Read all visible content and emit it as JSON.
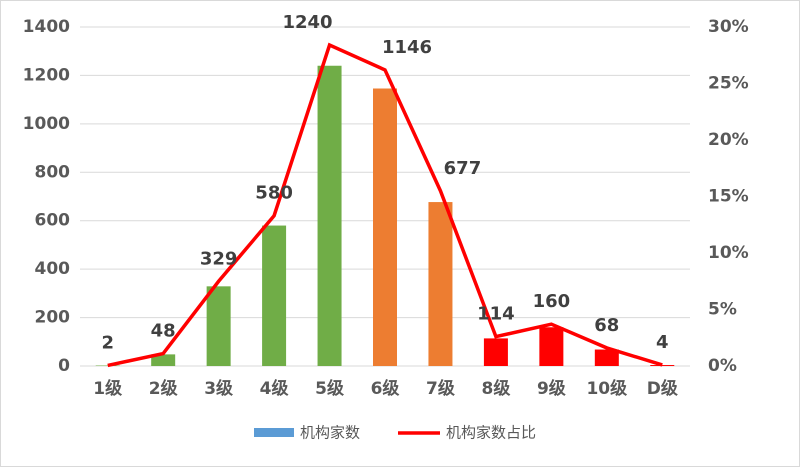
{
  "chart_data": {
    "type": "bar_line",
    "categories": [
      "1级",
      "2级",
      "3级",
      "4级",
      "5级",
      "6级",
      "7级",
      "8级",
      "9级",
      "10级",
      "D级"
    ],
    "series": [
      {
        "name": "机构家数",
        "type": "bar",
        "color": "#5b9bd5",
        "colors": [
          "#70ad47",
          "#70ad47",
          "#70ad47",
          "#70ad47",
          "#70ad47",
          "#ed7d31",
          "#ed7d31",
          "#ff0000",
          "#ff0000",
          "#ff0000",
          "#ff0000"
        ],
        "values": [
          2,
          48,
          329,
          580,
          1240,
          1146,
          677,
          114,
          160,
          68,
          4
        ]
      },
      {
        "name": "机构家数占比",
        "type": "line",
        "axis": "y2",
        "color": "#ff0000",
        "values": [
          0.05,
          1.1,
          7.5,
          13.3,
          28.4,
          26.2,
          15.5,
          2.6,
          3.7,
          1.6,
          0.09
        ]
      }
    ],
    "ylim": [
      0,
      1400
    ],
    "yticks": [
      0,
      200,
      400,
      600,
      800,
      1000,
      1200,
      1400
    ],
    "y2lim": [
      0,
      30
    ],
    "y2ticks": [
      {
        "value": 0,
        "label": "0%"
      },
      {
        "value": 5,
        "label": "5%"
      },
      {
        "value": 10,
        "label": "10%"
      },
      {
        "value": 15,
        "label": "15%"
      },
      {
        "value": 20,
        "label": "20%"
      },
      {
        "value": 25,
        "label": "25%"
      },
      {
        "value": 30,
        "label": "30%"
      }
    ],
    "grid": true
  }
}
